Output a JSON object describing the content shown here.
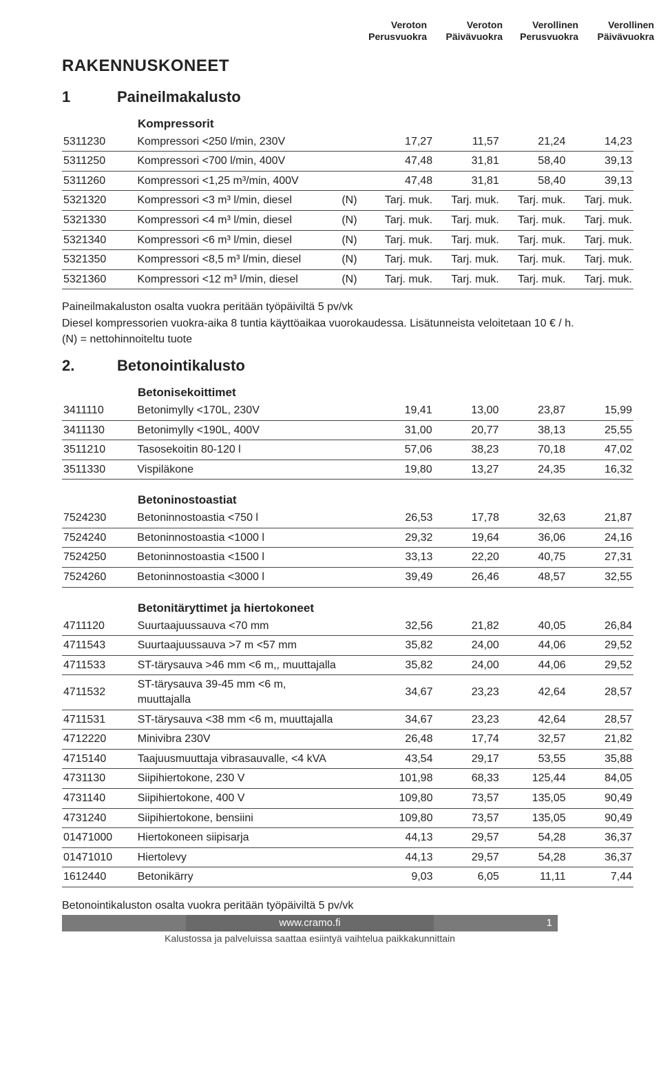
{
  "columns": {
    "c1a": "Veroton",
    "c1b": "Perusvuokra",
    "c2a": "Veroton",
    "c2b": "Päivävuokra",
    "c3a": "Verollinen",
    "c3b": "Perusvuokra",
    "c4a": "Verollinen",
    "c4b": "Päivävuokra"
  },
  "heading": "RAKENNUSKONEET",
  "section1": {
    "num": "1",
    "title": "Paineilmakalusto"
  },
  "sub1": "Kompressorit",
  "rows1": [
    {
      "code": "5311230",
      "desc": "Kompressori <250 l/min, 230V",
      "n": "",
      "v": [
        "17,27",
        "11,57",
        "21,24",
        "14,23"
      ]
    },
    {
      "code": "5311250",
      "desc": "Kompressori <700 l/min, 400V",
      "n": "",
      "v": [
        "47,48",
        "31,81",
        "58,40",
        "39,13"
      ]
    },
    {
      "code": "5311260",
      "desc": "Kompressori <1,25 m³/min, 400V",
      "n": "",
      "v": [
        "47,48",
        "31,81",
        "58,40",
        "39,13"
      ]
    },
    {
      "code": "5321320",
      "desc": "Kompressori <3 m³ l/min, diesel",
      "n": "(N)",
      "v": [
        "Tarj. muk.",
        "Tarj. muk.",
        "Tarj. muk.",
        "Tarj. muk."
      ]
    },
    {
      "code": "5321330",
      "desc": "Kompressori <4 m³ l/min, diesel",
      "n": "(N)",
      "v": [
        "Tarj. muk.",
        "Tarj. muk.",
        "Tarj. muk.",
        "Tarj. muk."
      ]
    },
    {
      "code": "5321340",
      "desc": "Kompressori <6 m³ l/min, diesel",
      "n": "(N)",
      "v": [
        "Tarj. muk.",
        "Tarj. muk.",
        "Tarj. muk.",
        "Tarj. muk."
      ]
    },
    {
      "code": "5321350",
      "desc": "Kompressori <8,5 m³ l/min, diesel",
      "n": "(N)",
      "v": [
        "Tarj. muk.",
        "Tarj. muk.",
        "Tarj. muk.",
        "Tarj. muk."
      ]
    },
    {
      "code": "5321360",
      "desc": "Kompressori <12 m³ l/min, diesel",
      "n": "(N)",
      "v": [
        "Tarj. muk.",
        "Tarj. muk.",
        "Tarj. muk.",
        "Tarj. muk."
      ]
    }
  ],
  "note1a": "Paineilmakaluston osalta vuokra peritään työpäiviltä 5 pv/vk",
  "note1b": "Diesel kompressorien vuokra-aika 8 tuntia käyttöaikaa vuorokaudessa. Lisätunneista veloitetaan 10 € / h.",
  "note1c": "(N) = nettohinnoiteltu tuote",
  "section2": {
    "num": "2.",
    "title": "Betonointikalusto"
  },
  "sub2a": "Betonisekoittimet",
  "rows2a": [
    {
      "code": "3411110",
      "desc": "Betonimylly <170L, 230V",
      "n": "",
      "v": [
        "19,41",
        "13,00",
        "23,87",
        "15,99"
      ]
    },
    {
      "code": "3411130",
      "desc": "Betonimylly <190L, 400V",
      "n": "",
      "v": [
        "31,00",
        "20,77",
        "38,13",
        "25,55"
      ]
    },
    {
      "code": "3511210",
      "desc": "Tasosekoitin 80-120 l",
      "n": "",
      "v": [
        "57,06",
        "38,23",
        "70,18",
        "47,02"
      ]
    },
    {
      "code": "3511330",
      "desc": "Vispiläkone",
      "n": "",
      "v": [
        "19,80",
        "13,27",
        "24,35",
        "16,32"
      ]
    }
  ],
  "sub2b": "Betoninostoastiat",
  "rows2b": [
    {
      "code": "7524230",
      "desc": "Betoninnostoastia <750 l",
      "n": "",
      "v": [
        "26,53",
        "17,78",
        "32,63",
        "21,87"
      ]
    },
    {
      "code": "7524240",
      "desc": "Betoninnostoastia <1000 l",
      "n": "",
      "v": [
        "29,32",
        "19,64",
        "36,06",
        "24,16"
      ]
    },
    {
      "code": "7524250",
      "desc": "Betoninnostoastia <1500 l",
      "n": "",
      "v": [
        "33,13",
        "22,20",
        "40,75",
        "27,31"
      ]
    },
    {
      "code": "7524260",
      "desc": "Betoninnostoastia <3000 l",
      "n": "",
      "v": [
        "39,49",
        "26,46",
        "48,57",
        "32,55"
      ]
    }
  ],
  "sub2c": "Betonitäryttimet ja hiertokoneet",
  "rows2c": [
    {
      "code": "4711120",
      "desc": "Suurtaajuussauva <70 mm",
      "n": "",
      "v": [
        "32,56",
        "21,82",
        "40,05",
        "26,84"
      ]
    },
    {
      "code": "4711543",
      "desc": "Suurtaajuussauva >7 m <57 mm",
      "n": "",
      "v": [
        "35,82",
        "24,00",
        "44,06",
        "29,52"
      ]
    },
    {
      "code": "4711533",
      "desc": "ST-tärysauva >46 mm <6 m,, muuttajalla",
      "n": "",
      "v": [
        "35,82",
        "24,00",
        "44,06",
        "29,52"
      ]
    },
    {
      "code": "4711532",
      "desc": "ST-tärysauva 39-45 mm <6 m, muuttajalla",
      "n": "",
      "v": [
        "34,67",
        "23,23",
        "42,64",
        "28,57"
      ]
    },
    {
      "code": "4711531",
      "desc": "ST-tärysauva <38 mm <6 m, muuttajalla",
      "n": "",
      "v": [
        "34,67",
        "23,23",
        "42,64",
        "28,57"
      ]
    },
    {
      "code": "4712220",
      "desc": "Minivibra 230V",
      "n": "",
      "v": [
        "26,48",
        "17,74",
        "32,57",
        "21,82"
      ]
    },
    {
      "code": "4715140",
      "desc": "Taajuusmuuttaja vibrasauvalle, <4 kVA",
      "n": "",
      "v": [
        "43,54",
        "29,17",
        "53,55",
        "35,88"
      ]
    },
    {
      "code": "4731130",
      "desc": "Siipihiertokone, 230 V",
      "n": "",
      "v": [
        "101,98",
        "68,33",
        "125,44",
        "84,05"
      ]
    },
    {
      "code": "4731140",
      "desc": "Siipihiertokone, 400 V",
      "n": "",
      "v": [
        "109,80",
        "73,57",
        "135,05",
        "90,49"
      ]
    },
    {
      "code": "4731240",
      "desc": "Siipihiertokone, bensiini",
      "n": "",
      "v": [
        "109,80",
        "73,57",
        "135,05",
        "90,49"
      ]
    },
    {
      "code": "01471000",
      "desc": "Hiertokoneen siipisarja",
      "n": "",
      "v": [
        "44,13",
        "29,57",
        "54,28",
        "36,37"
      ]
    },
    {
      "code": "01471010",
      "desc": "Hiertolevy",
      "n": "",
      "v": [
        "44,13",
        "29,57",
        "54,28",
        "36,37"
      ]
    },
    {
      "code": "1612440",
      "desc": "Betonikärry",
      "n": "",
      "v": [
        "9,03",
        "6,05",
        "11,11",
        "7,44"
      ]
    }
  ],
  "footer_note": "Betonointikaluston osalta vuokra peritään työpäiviltä 5 pv/vk",
  "footer_url": "www.cramo.fi",
  "footer_page": "1",
  "footer_caption": "Kalustossa ja palveluissa saattaa esiintyä vaihtelua paikkakunnittain"
}
